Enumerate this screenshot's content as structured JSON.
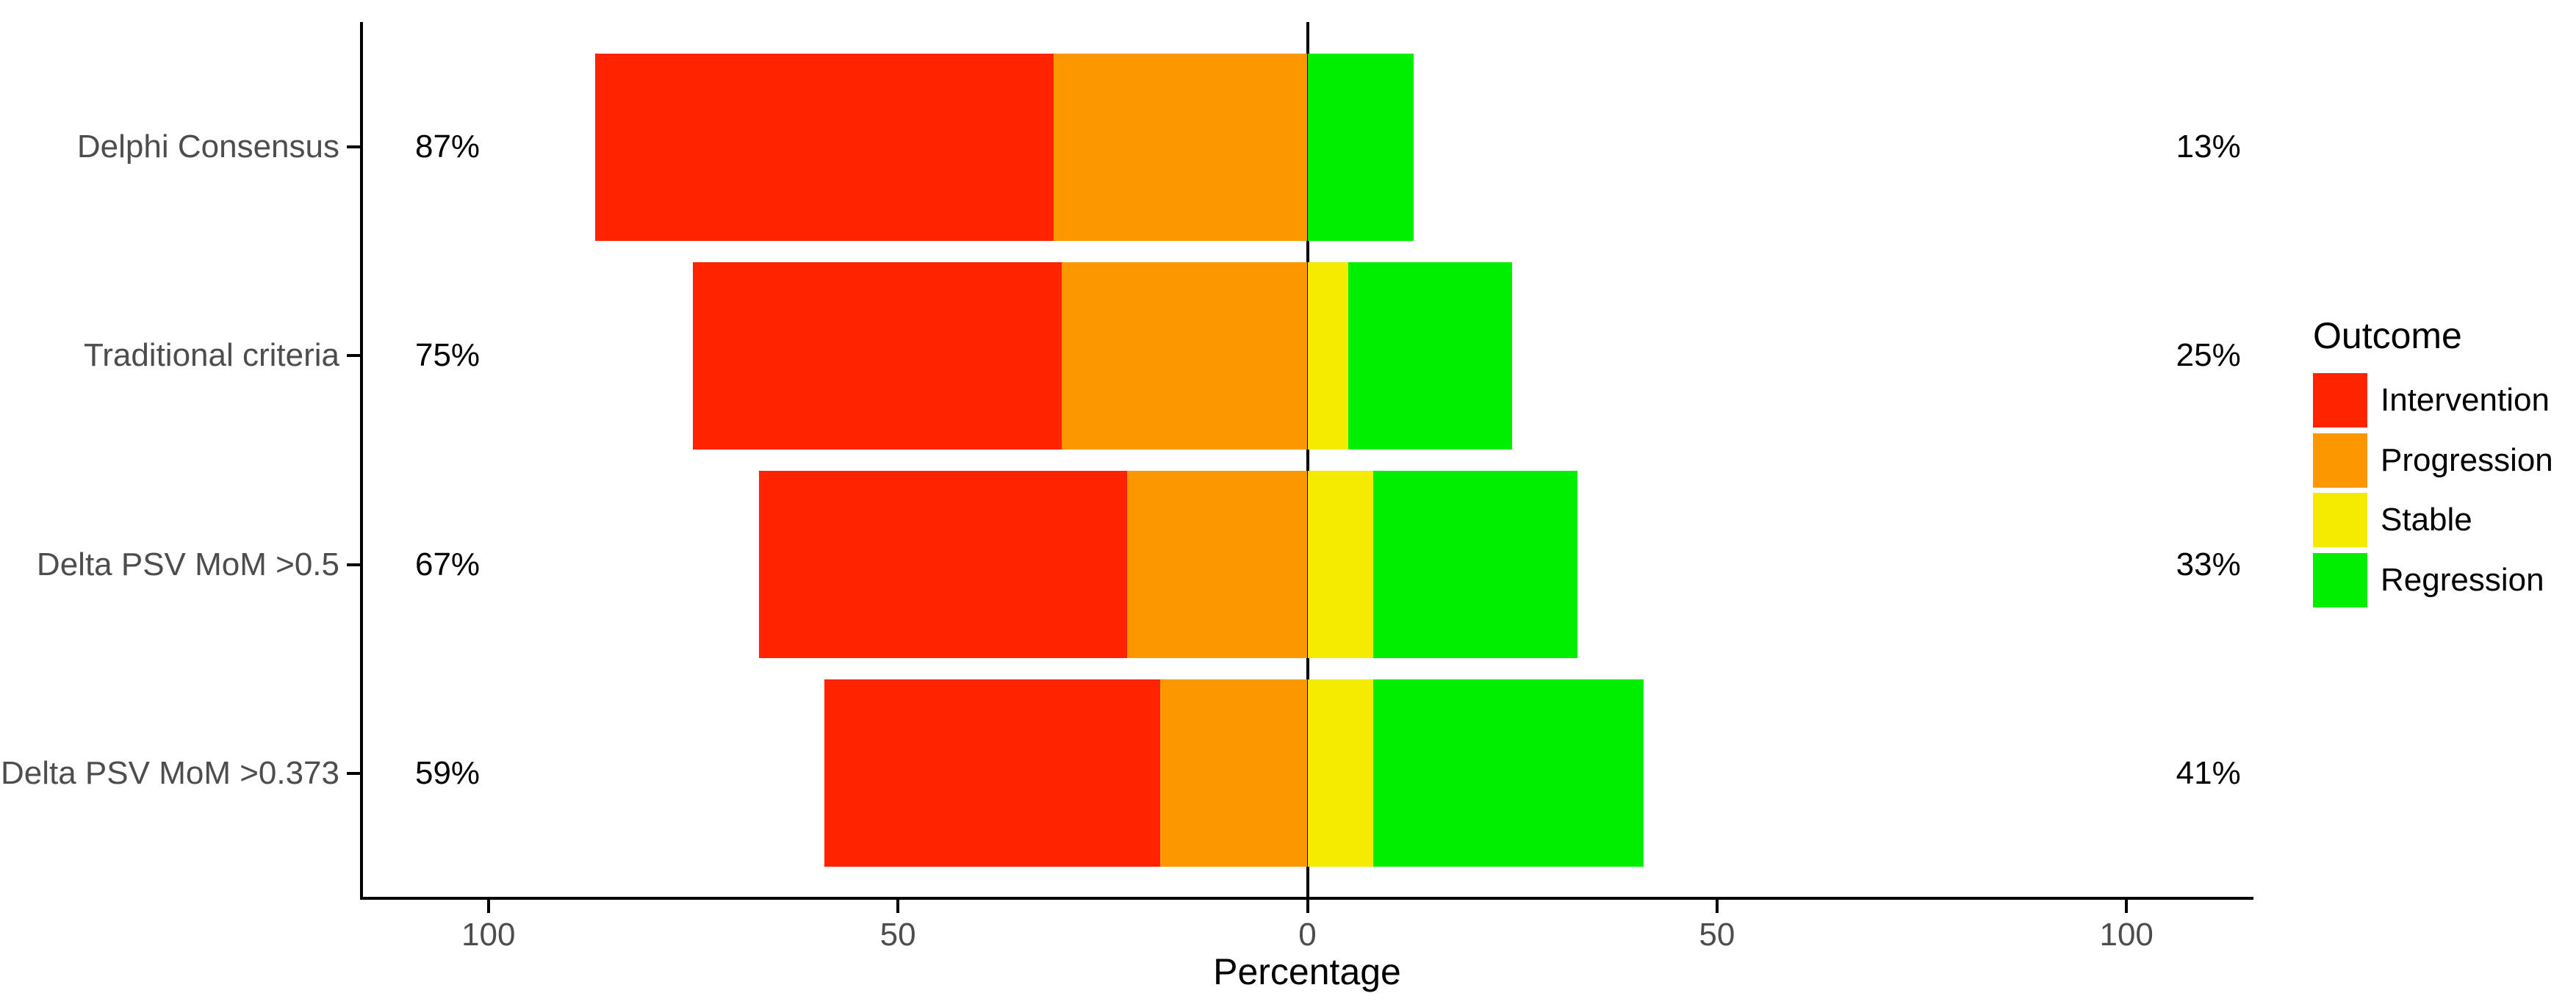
{
  "figure": {
    "background_color": "#FFFFFF"
  },
  "chart_data": {
    "type": "bar",
    "subtype": "diverging-stacked-bar",
    "orientation": "horizontal",
    "title": "",
    "xlabel": "Percentage",
    "x_range": [
      -115.5,
      115.5
    ],
    "x_ticks": [
      {
        "value": -100,
        "label": "100"
      },
      {
        "value": -50,
        "label": "50"
      },
      {
        "value": 0,
        "label": "0"
      },
      {
        "value": 50,
        "label": "50"
      },
      {
        "value": 100,
        "label": "100"
      }
    ],
    "grid": "off",
    "zero_reference_line": true,
    "series_order": [
      "Intervention",
      "Progression",
      "Stable",
      "Regression"
    ],
    "left_series": [
      "Intervention",
      "Progression"
    ],
    "right_series": [
      "Stable",
      "Regression"
    ],
    "colors": {
      "Intervention": "#FF2400",
      "Progression": "#FC9700",
      "Stable": "#F5EB00",
      "Regression": "#00EE00"
    },
    "rows": [
      {
        "category": "Delphi Consensus",
        "left_total_label": "87%",
        "right_total_label": "13%",
        "values": {
          "Intervention": 56,
          "Progression": 31,
          "Stable": 0,
          "Regression": 13
        }
      },
      {
        "category": "Traditional criteria",
        "left_total_label": "75%",
        "right_total_label": "25%",
        "values": {
          "Intervention": 45,
          "Progression": 30,
          "Stable": 5,
          "Regression": 20
        }
      },
      {
        "category": "Delta PSV MoM >0.5",
        "left_total_label": "67%",
        "right_total_label": "33%",
        "values": {
          "Intervention": 45,
          "Progression": 22,
          "Stable": 8,
          "Regression": 25
        }
      },
      {
        "category": "Delta PSV MoM >0.373",
        "left_total_label": "59%",
        "right_total_label": "41%",
        "values": {
          "Intervention": 41,
          "Progression": 18,
          "Stable": 8,
          "Regression": 33
        }
      }
    ],
    "legend": {
      "title": "Outcome",
      "position": "right",
      "entries": [
        {
          "label": "Intervention",
          "color": "#FF2400"
        },
        {
          "label": "Progression",
          "color": "#FC9700"
        },
        {
          "label": "Stable",
          "color": "#F5EB00"
        },
        {
          "label": "Regression",
          "color": "#00EE00"
        }
      ]
    },
    "text_colors": {
      "axis_text": "#4D4D4D",
      "annotation_text": "#000000"
    }
  }
}
